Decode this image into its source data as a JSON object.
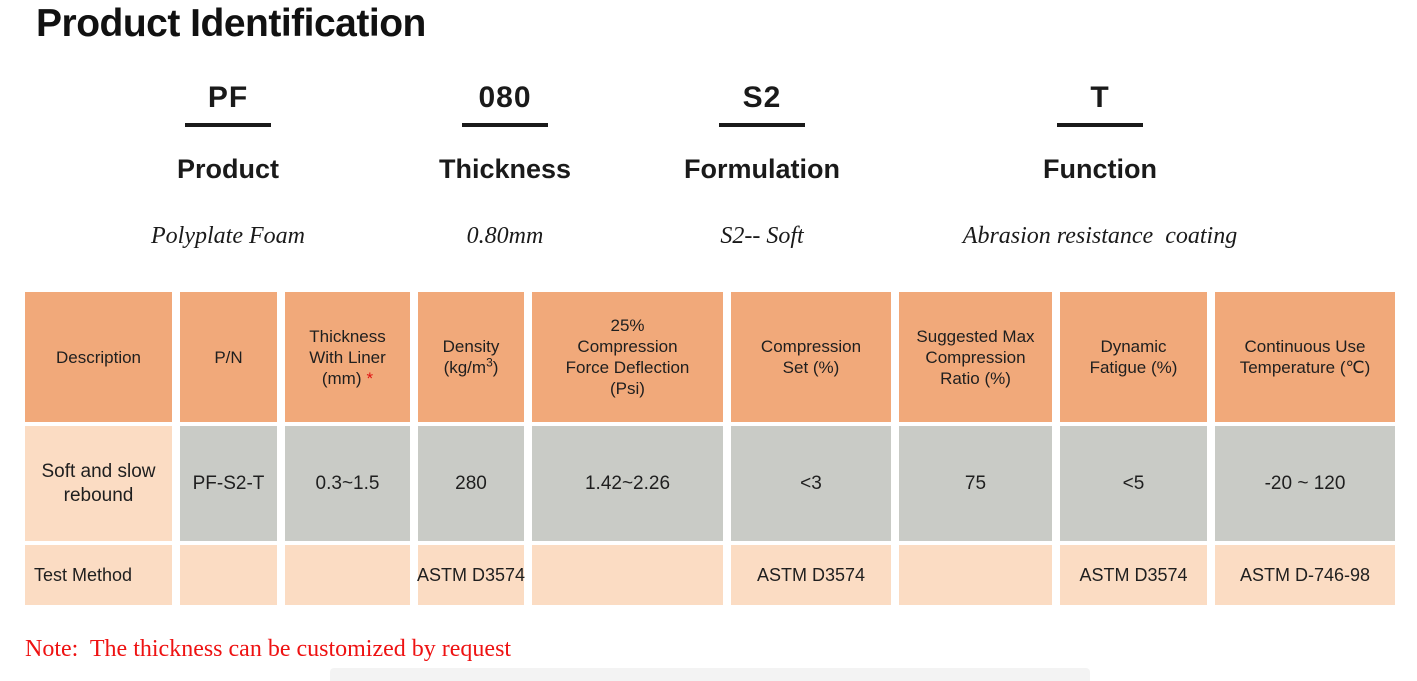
{
  "title": "Product Identification",
  "code_breakdown": [
    {
      "code": "PF",
      "label": "Product",
      "value": "Polyplate Foam"
    },
    {
      "code": "080",
      "label": "Thickness",
      "value": "0.80mm"
    },
    {
      "code": "S2",
      "label": "Formulation",
      "value": "S2-- Soft"
    },
    {
      "code": "T",
      "label": "Function",
      "value": "Abrasion resistance  coating"
    }
  ],
  "table": {
    "headers": [
      {
        "lines": [
          "Description"
        ]
      },
      {
        "lines": [
          "P/N"
        ]
      },
      {
        "lines": [
          "Thickness",
          "With Liner",
          "(mm)"
        ],
        "asterisk": "*"
      },
      {
        "lines": [
          "Density"
        ],
        "unit_pre": "(kg/m",
        "sup": "3",
        "unit_post": ")"
      },
      {
        "lines": [
          "25%",
          "Compression",
          "Force Deflection",
          "(Psi)"
        ]
      },
      {
        "lines": [
          "Compression",
          "Set (%)"
        ]
      },
      {
        "lines": [
          "Suggested Max",
          "Compression",
          "Ratio (%)"
        ]
      },
      {
        "lines": [
          "Dynamic",
          "Fatigue (%)"
        ]
      },
      {
        "lines": [
          "Continuous Use",
          "Temperature (℃)"
        ]
      }
    ],
    "rows": [
      {
        "label_lines": [
          "Soft and slow",
          "rebound"
        ],
        "cells": [
          "PF-S2-T",
          "0.3~1.5",
          "280",
          "1.42~2.26",
          "<3",
          "75",
          "<5",
          "-20 ~ 120"
        ]
      },
      {
        "label": "Test Method",
        "cells": [
          "",
          "",
          "ASTM D3574",
          "",
          "ASTM D3574",
          "",
          "ASTM D3574",
          "ASTM D-746-98"
        ]
      }
    ]
  },
  "note": "Note:  The thickness can be customized by request",
  "colors": {
    "header_cell": "#F1A97A",
    "data_cell": "#C9CBC6",
    "light_cell": "#FBDCC3",
    "note_red": "#EE1212",
    "asterisk_red": "#E01212",
    "text_dark": "#1F1F1F"
  }
}
